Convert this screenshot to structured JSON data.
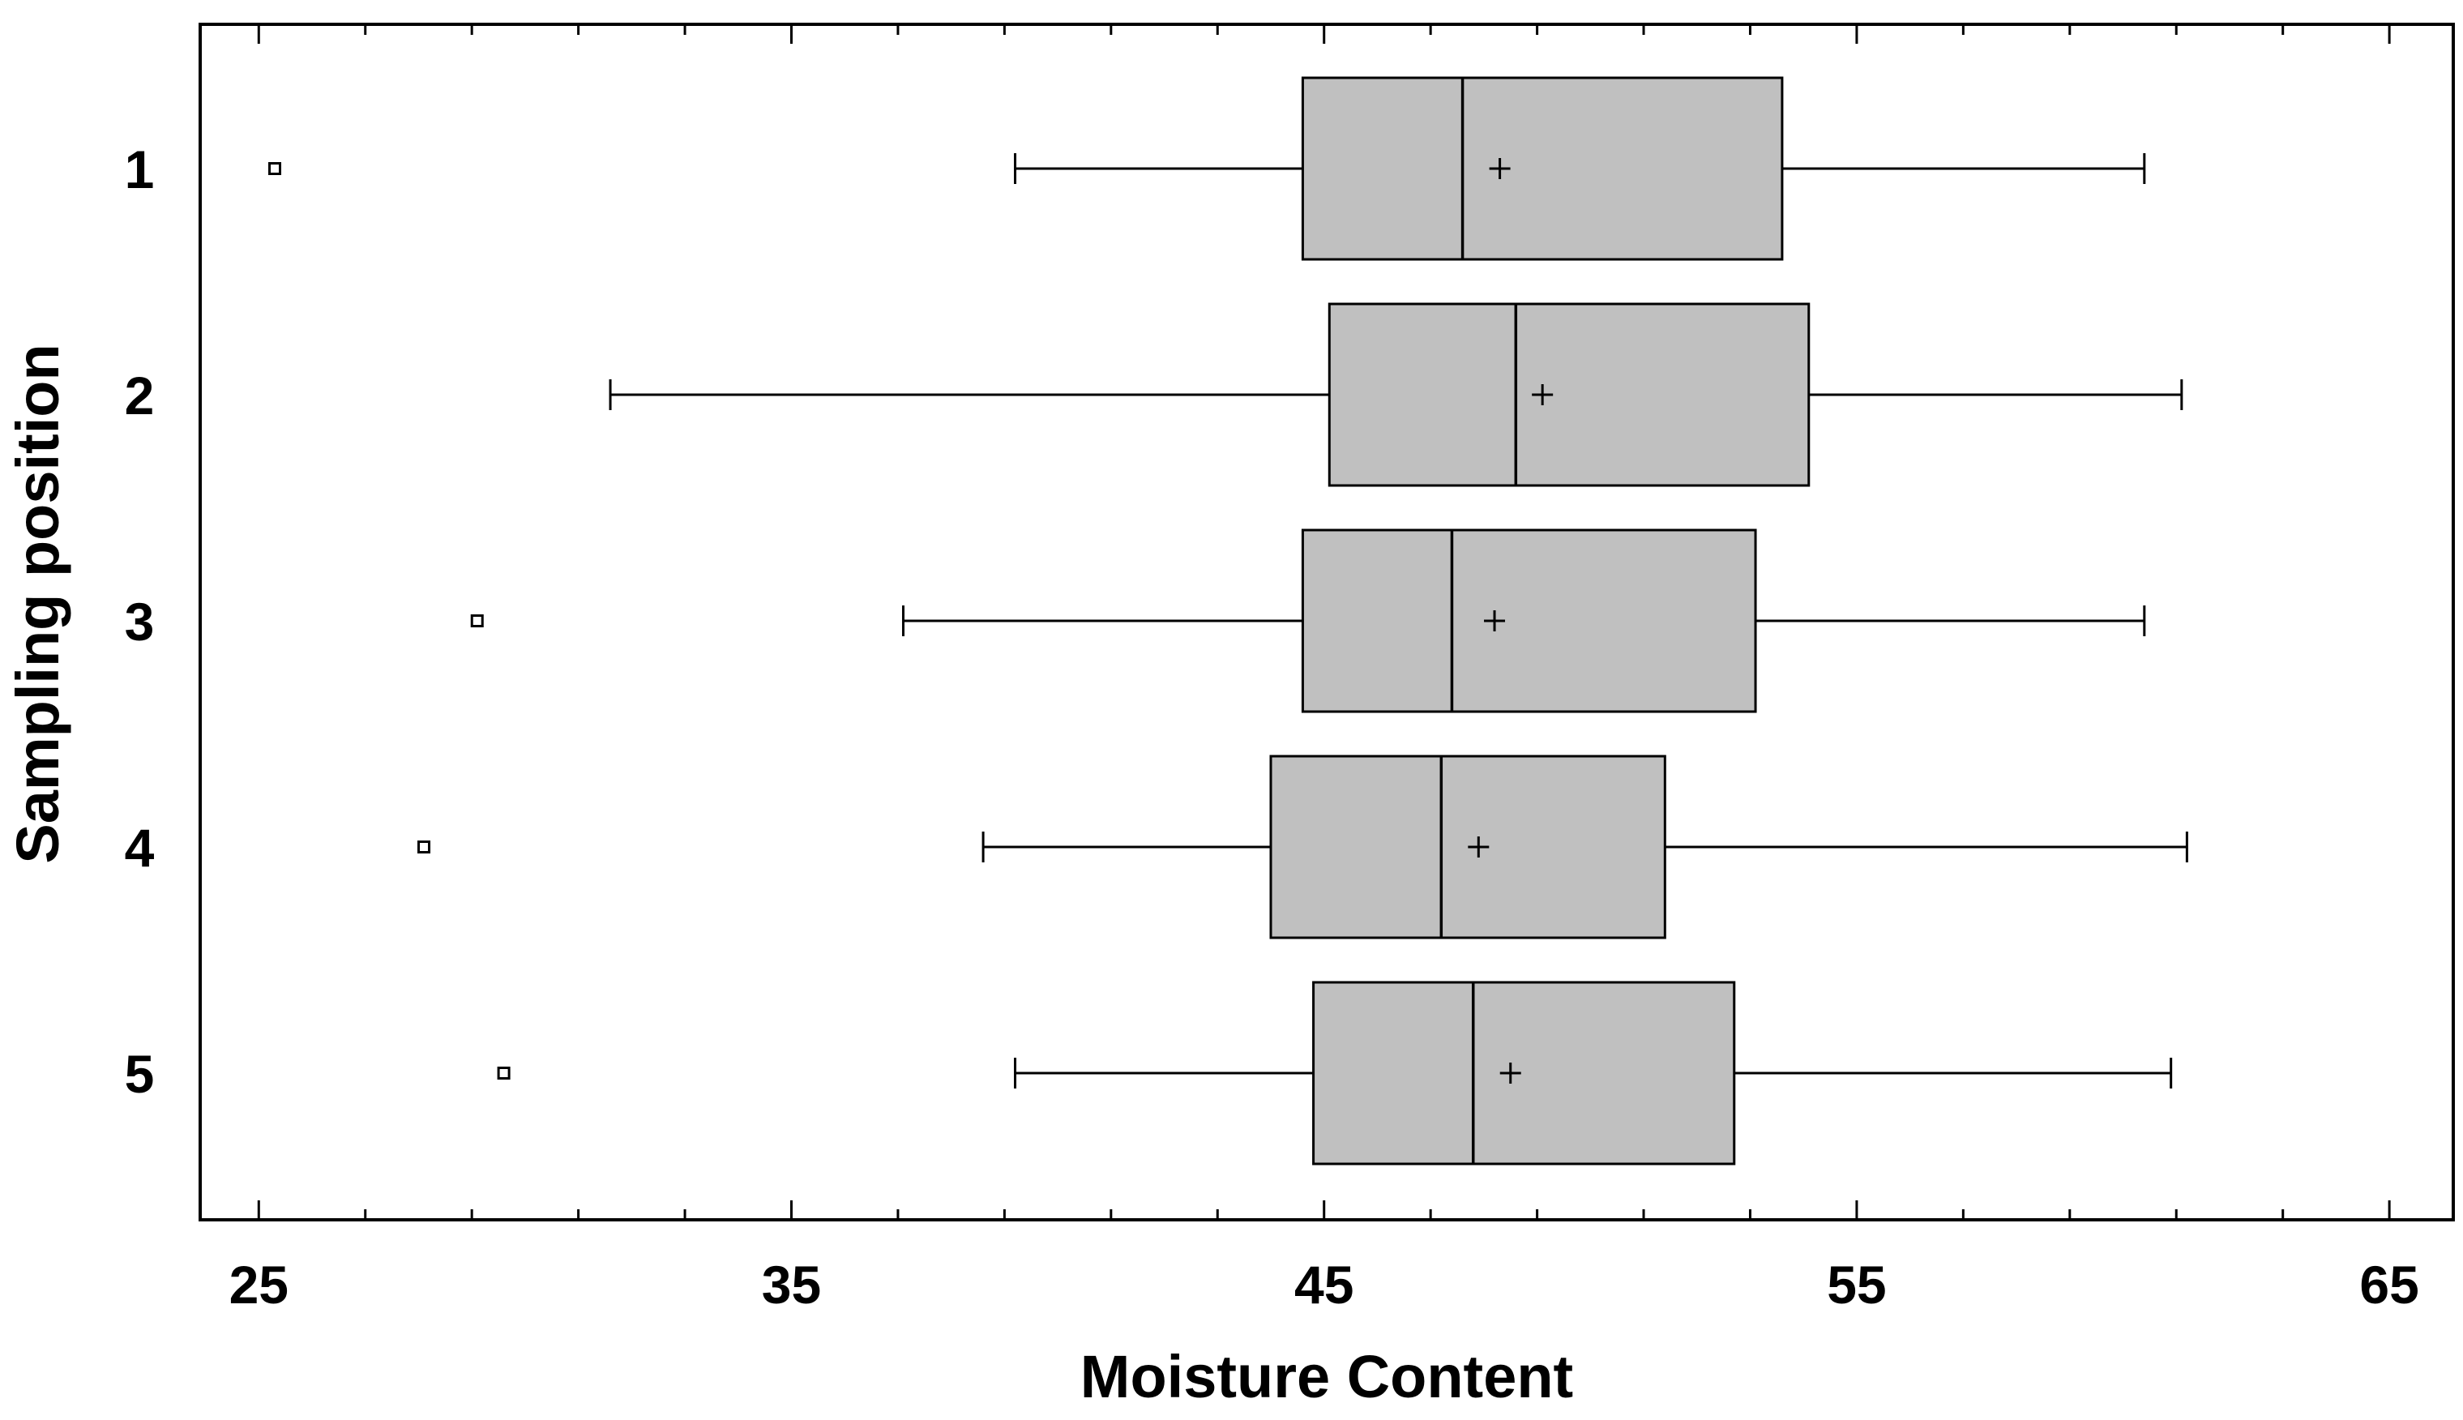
{
  "chart_data": {
    "type": "boxplot",
    "orientation": "horizontal",
    "title": "",
    "xlabel": "Moisture Content",
    "ylabel": "Sampling position",
    "xlim": [
      23.9,
      66.2
    ],
    "x_ticks": [
      25,
      35,
      45,
      55,
      65
    ],
    "x_minor_ticks": [
      27,
      29,
      31,
      33,
      37,
      39,
      41,
      43,
      47,
      49,
      51,
      53,
      57,
      59,
      61,
      63
    ],
    "categories": [
      "1",
      "2",
      "3",
      "4",
      "5"
    ],
    "series": [
      {
        "category": "1",
        "min": 39.2,
        "q1": 44.6,
        "median": 47.6,
        "q3": 53.6,
        "max": 60.4,
        "mean": 48.3,
        "outliers": [
          25.3
        ]
      },
      {
        "category": "2",
        "min": 31.6,
        "q1": 45.1,
        "median": 48.6,
        "q3": 54.1,
        "max": 61.1,
        "mean": 49.1,
        "outliers": []
      },
      {
        "category": "3",
        "min": 37.1,
        "q1": 44.6,
        "median": 47.4,
        "q3": 53.1,
        "max": 60.4,
        "mean": 48.2,
        "outliers": [
          29.1
        ]
      },
      {
        "category": "4",
        "min": 38.6,
        "q1": 44.0,
        "median": 47.2,
        "q3": 51.4,
        "max": 61.2,
        "mean": 47.9,
        "outliers": [
          28.1
        ]
      },
      {
        "category": "5",
        "min": 39.2,
        "q1": 44.8,
        "median": 47.8,
        "q3": 52.7,
        "max": 60.9,
        "mean": 48.5,
        "outliers": [
          29.6
        ]
      }
    ],
    "box_fill": "#c0c0c0",
    "line_color": "#000000",
    "grid": false,
    "legend": "none"
  }
}
